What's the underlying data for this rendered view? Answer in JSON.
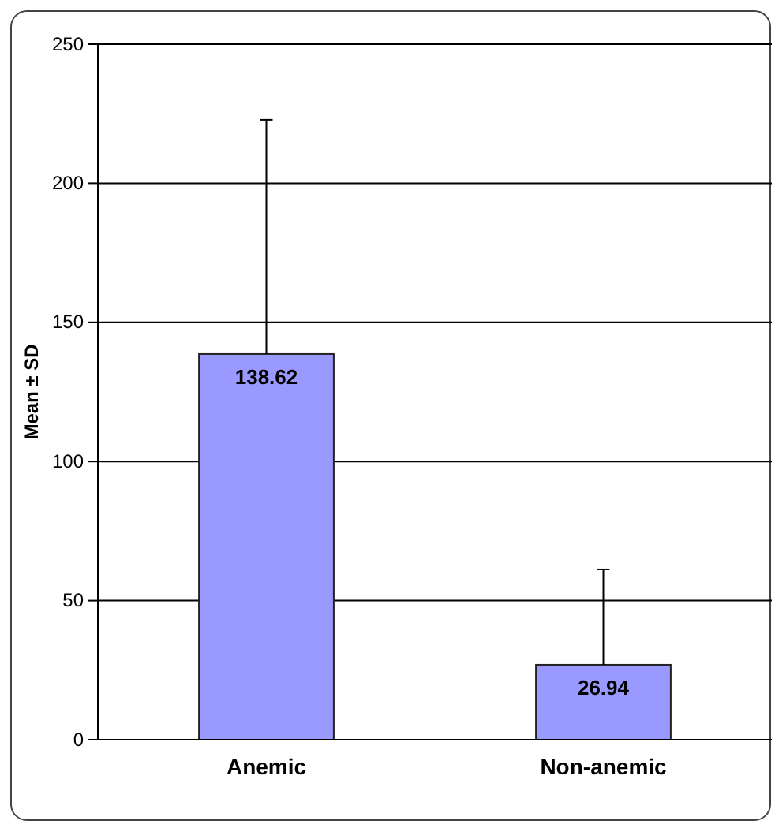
{
  "chart_data": {
    "type": "bar",
    "ylabel": "Mean ± SD",
    "categories": [
      "Anemic",
      "Non-anemic"
    ],
    "values": [
      138.62,
      26.94
    ],
    "errors": [
      84.2,
      34.3
    ],
    "color": "#9999ff",
    "data_labels": true,
    "ylim": [
      0,
      250
    ],
    "yticks": [
      0,
      50,
      100,
      150,
      200,
      250
    ],
    "grid": "y"
  }
}
